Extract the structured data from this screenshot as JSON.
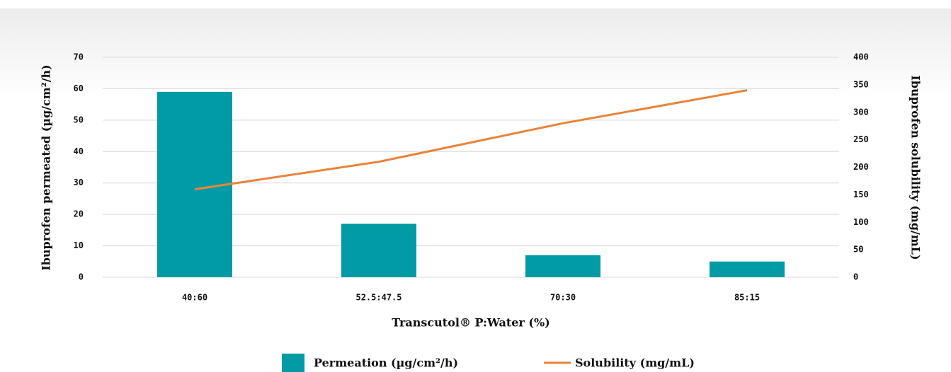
{
  "chart_data": {
    "type": "bar",
    "x_label": "Transcutol® P:Water (%)",
    "y_label": "Ibuprofen permeated (µg/cm²/h)",
    "y2_label": "Ibuprofen solubility (mg/mL)",
    "categories": [
      "40:60",
      "52.5:47.5",
      "70:30",
      "85:15"
    ],
    "series": [
      {
        "name": "Permeation (µg/cm²/h)",
        "type": "bar",
        "color": "#009ba4",
        "values": [
          59,
          17,
          7,
          5
        ]
      },
      {
        "name": "Solubility (mg/mL)",
        "type": "line",
        "axis": "y2",
        "color": "#e8833a",
        "values": [
          160,
          210,
          280,
          340
        ]
      }
    ],
    "ylim": [
      0,
      70
    ],
    "yticks": [
      0,
      10,
      20,
      30,
      40,
      50,
      60,
      70
    ],
    "y2lim": [
      0,
      400
    ],
    "y2ticks": [
      0,
      50,
      100,
      150,
      200,
      250,
      300,
      350,
      400
    ],
    "grid": true,
    "legend": "bottom"
  }
}
